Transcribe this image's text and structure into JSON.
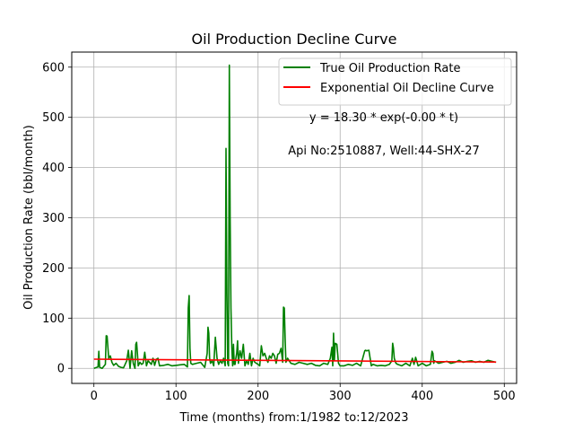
{
  "chart_data": {
    "type": "line",
    "title": "Oil Production Decline Curve",
    "xlabel": "Time (months) from:1/1982 to:12/2023",
    "ylabel": "Oil Production Rate (bbl/month)",
    "xlim": [
      -27,
      515
    ],
    "ylim": [
      -30,
      630
    ],
    "xticks": [
      0,
      100,
      200,
      300,
      400,
      500
    ],
    "yticks": [
      0,
      100,
      200,
      300,
      400,
      500,
      600
    ],
    "grid": true,
    "legend_position": "top-right",
    "annotations": [
      "y = 18.30 * exp(-0.00 * t)",
      "Api No:2510887, Well:44-SHX-27"
    ],
    "series": [
      {
        "name": "True Oil Production Rate",
        "color": "#008000",
        "x": [
          0,
          5,
          6,
          7,
          10,
          14,
          15,
          16,
          18,
          20,
          22,
          24,
          27,
          30,
          33,
          36,
          38,
          40,
          42,
          44,
          46,
          48,
          50,
          51,
          52,
          53,
          54,
          56,
          58,
          60,
          62,
          64,
          66,
          70,
          72,
          74,
          76,
          78,
          80,
          85,
          90,
          95,
          100,
          105,
          110,
          114,
          115,
          116,
          117,
          118,
          120,
          125,
          130,
          135,
          138,
          139,
          140,
          141,
          142,
          144,
          146,
          148,
          150,
          152,
          154,
          156,
          158,
          160,
          161,
          162,
          163,
          164,
          165,
          166,
          167,
          168,
          169,
          170,
          171,
          172,
          173,
          174,
          175,
          176,
          178,
          180,
          182,
          184,
          186,
          188,
          190,
          192,
          194,
          196,
          198,
          200,
          202,
          204,
          206,
          208,
          210,
          212,
          214,
          216,
          218,
          220,
          222,
          224,
          226,
          228,
          230,
          231,
          232,
          233,
          234,
          236,
          238,
          240,
          245,
          250,
          255,
          260,
          265,
          270,
          275,
          280,
          285,
          288,
          290,
          291,
          292,
          293,
          294,
          296,
          298,
          300,
          305,
          310,
          315,
          320,
          325,
          330,
          331,
          332,
          335,
          338,
          340,
          345,
          350,
          355,
          360,
          363,
          364,
          365,
          366,
          368,
          370,
          375,
          380,
          385,
          388,
          390,
          392,
          395,
          400,
          405,
          410,
          412,
          413,
          414,
          415,
          418,
          420,
          425,
          430,
          435,
          440,
          445,
          450,
          455,
          460,
          465,
          470,
          475,
          480,
          485,
          490
        ],
        "values": [
          0,
          3,
          34,
          2,
          0,
          8,
          65,
          64,
          20,
          25,
          12,
          6,
          10,
          4,
          2,
          1,
          8,
          15,
          36,
          0,
          35,
          10,
          0,
          48,
          52,
          30,
          5,
          12,
          8,
          10,
          32,
          5,
          15,
          8,
          20,
          6,
          18,
          20,
          5,
          6,
          8,
          5,
          6,
          7,
          8,
          3,
          120,
          145,
          40,
          10,
          8,
          10,
          12,
          2,
          30,
          82,
          70,
          20,
          10,
          15,
          5,
          62,
          20,
          8,
          15,
          10,
          20,
          5,
          438,
          150,
          10,
          5,
          604,
          300,
          120,
          40,
          5,
          48,
          8,
          8,
          20,
          30,
          55,
          10,
          35,
          20,
          48,
          5,
          15,
          8,
          30,
          5,
          20,
          12,
          10,
          8,
          5,
          45,
          25,
          30,
          20,
          12,
          25,
          20,
          30,
          25,
          10,
          28,
          30,
          40,
          12,
          122,
          120,
          60,
          12,
          20,
          15,
          10,
          8,
          12,
          10,
          8,
          10,
          6,
          5,
          10,
          8,
          20,
          42,
          5,
          70,
          15,
          50,
          48,
          10,
          5,
          5,
          8,
          6,
          10,
          5,
          35,
          36,
          35,
          36,
          5,
          8,
          5,
          6,
          5,
          8,
          15,
          50,
          40,
          20,
          10,
          8,
          5,
          10,
          5,
          20,
          8,
          22,
          5,
          10,
          5,
          8,
          34,
          30,
          10,
          15,
          12,
          10,
          12,
          14,
          10,
          12,
          16,
          12,
          14,
          15,
          12,
          14,
          12,
          16,
          14,
          12
        ]
      },
      {
        "name": "Exponential Oil Decline Curve",
        "color": "#ff0000",
        "x": [
          0,
          490
        ],
        "values": [
          18.3,
          12.5
        ]
      }
    ]
  }
}
